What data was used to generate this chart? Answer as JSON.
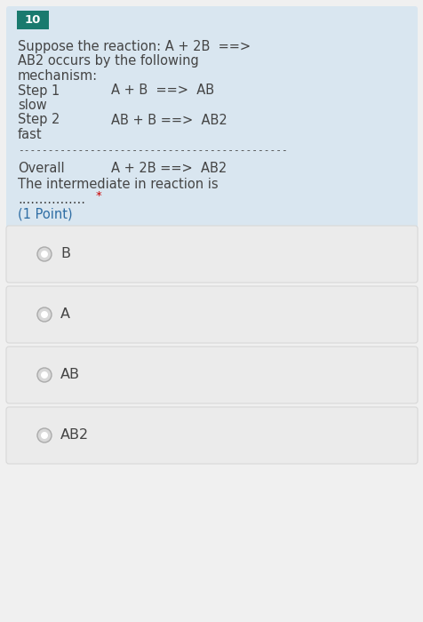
{
  "question_number": "10",
  "question_number_bg": "#1a7a6e",
  "question_number_color": "#ffffff",
  "question_bg": "#d9e6f0",
  "page_bg": "#f0f0f0",
  "option_bg": "#ebebeb",
  "option_border": "#d8d8d8",
  "text_color": "#444444",
  "blue_text_color": "#2e6da4",
  "red_star_color": "#cc0000",
  "question_lines": [
    "Suppose the reaction: A + 2B  ==>",
    "AB2 occurs by the following",
    "mechanism:"
  ],
  "step1_label": "Step 1",
  "step1_eq": "A + B  ==>  AB",
  "step1_speed": "slow",
  "step2_label": "Step 2",
  "step2_eq": "AB + B ==>  AB2",
  "step2_speed": "fast",
  "separator": "---------------------------------------------",
  "overall_label": "Overall",
  "overall_eq": "A + 2B ==>  AB2",
  "question_text": "The intermediate in reaction is",
  "dots": "................",
  "star": "*",
  "point_text": "(1 Point)",
  "options": [
    "B",
    "A",
    "AB",
    "AB2"
  ],
  "font_size_question": 10.5,
  "font_size_options": 11.5,
  "font_size_badge": 9.5
}
